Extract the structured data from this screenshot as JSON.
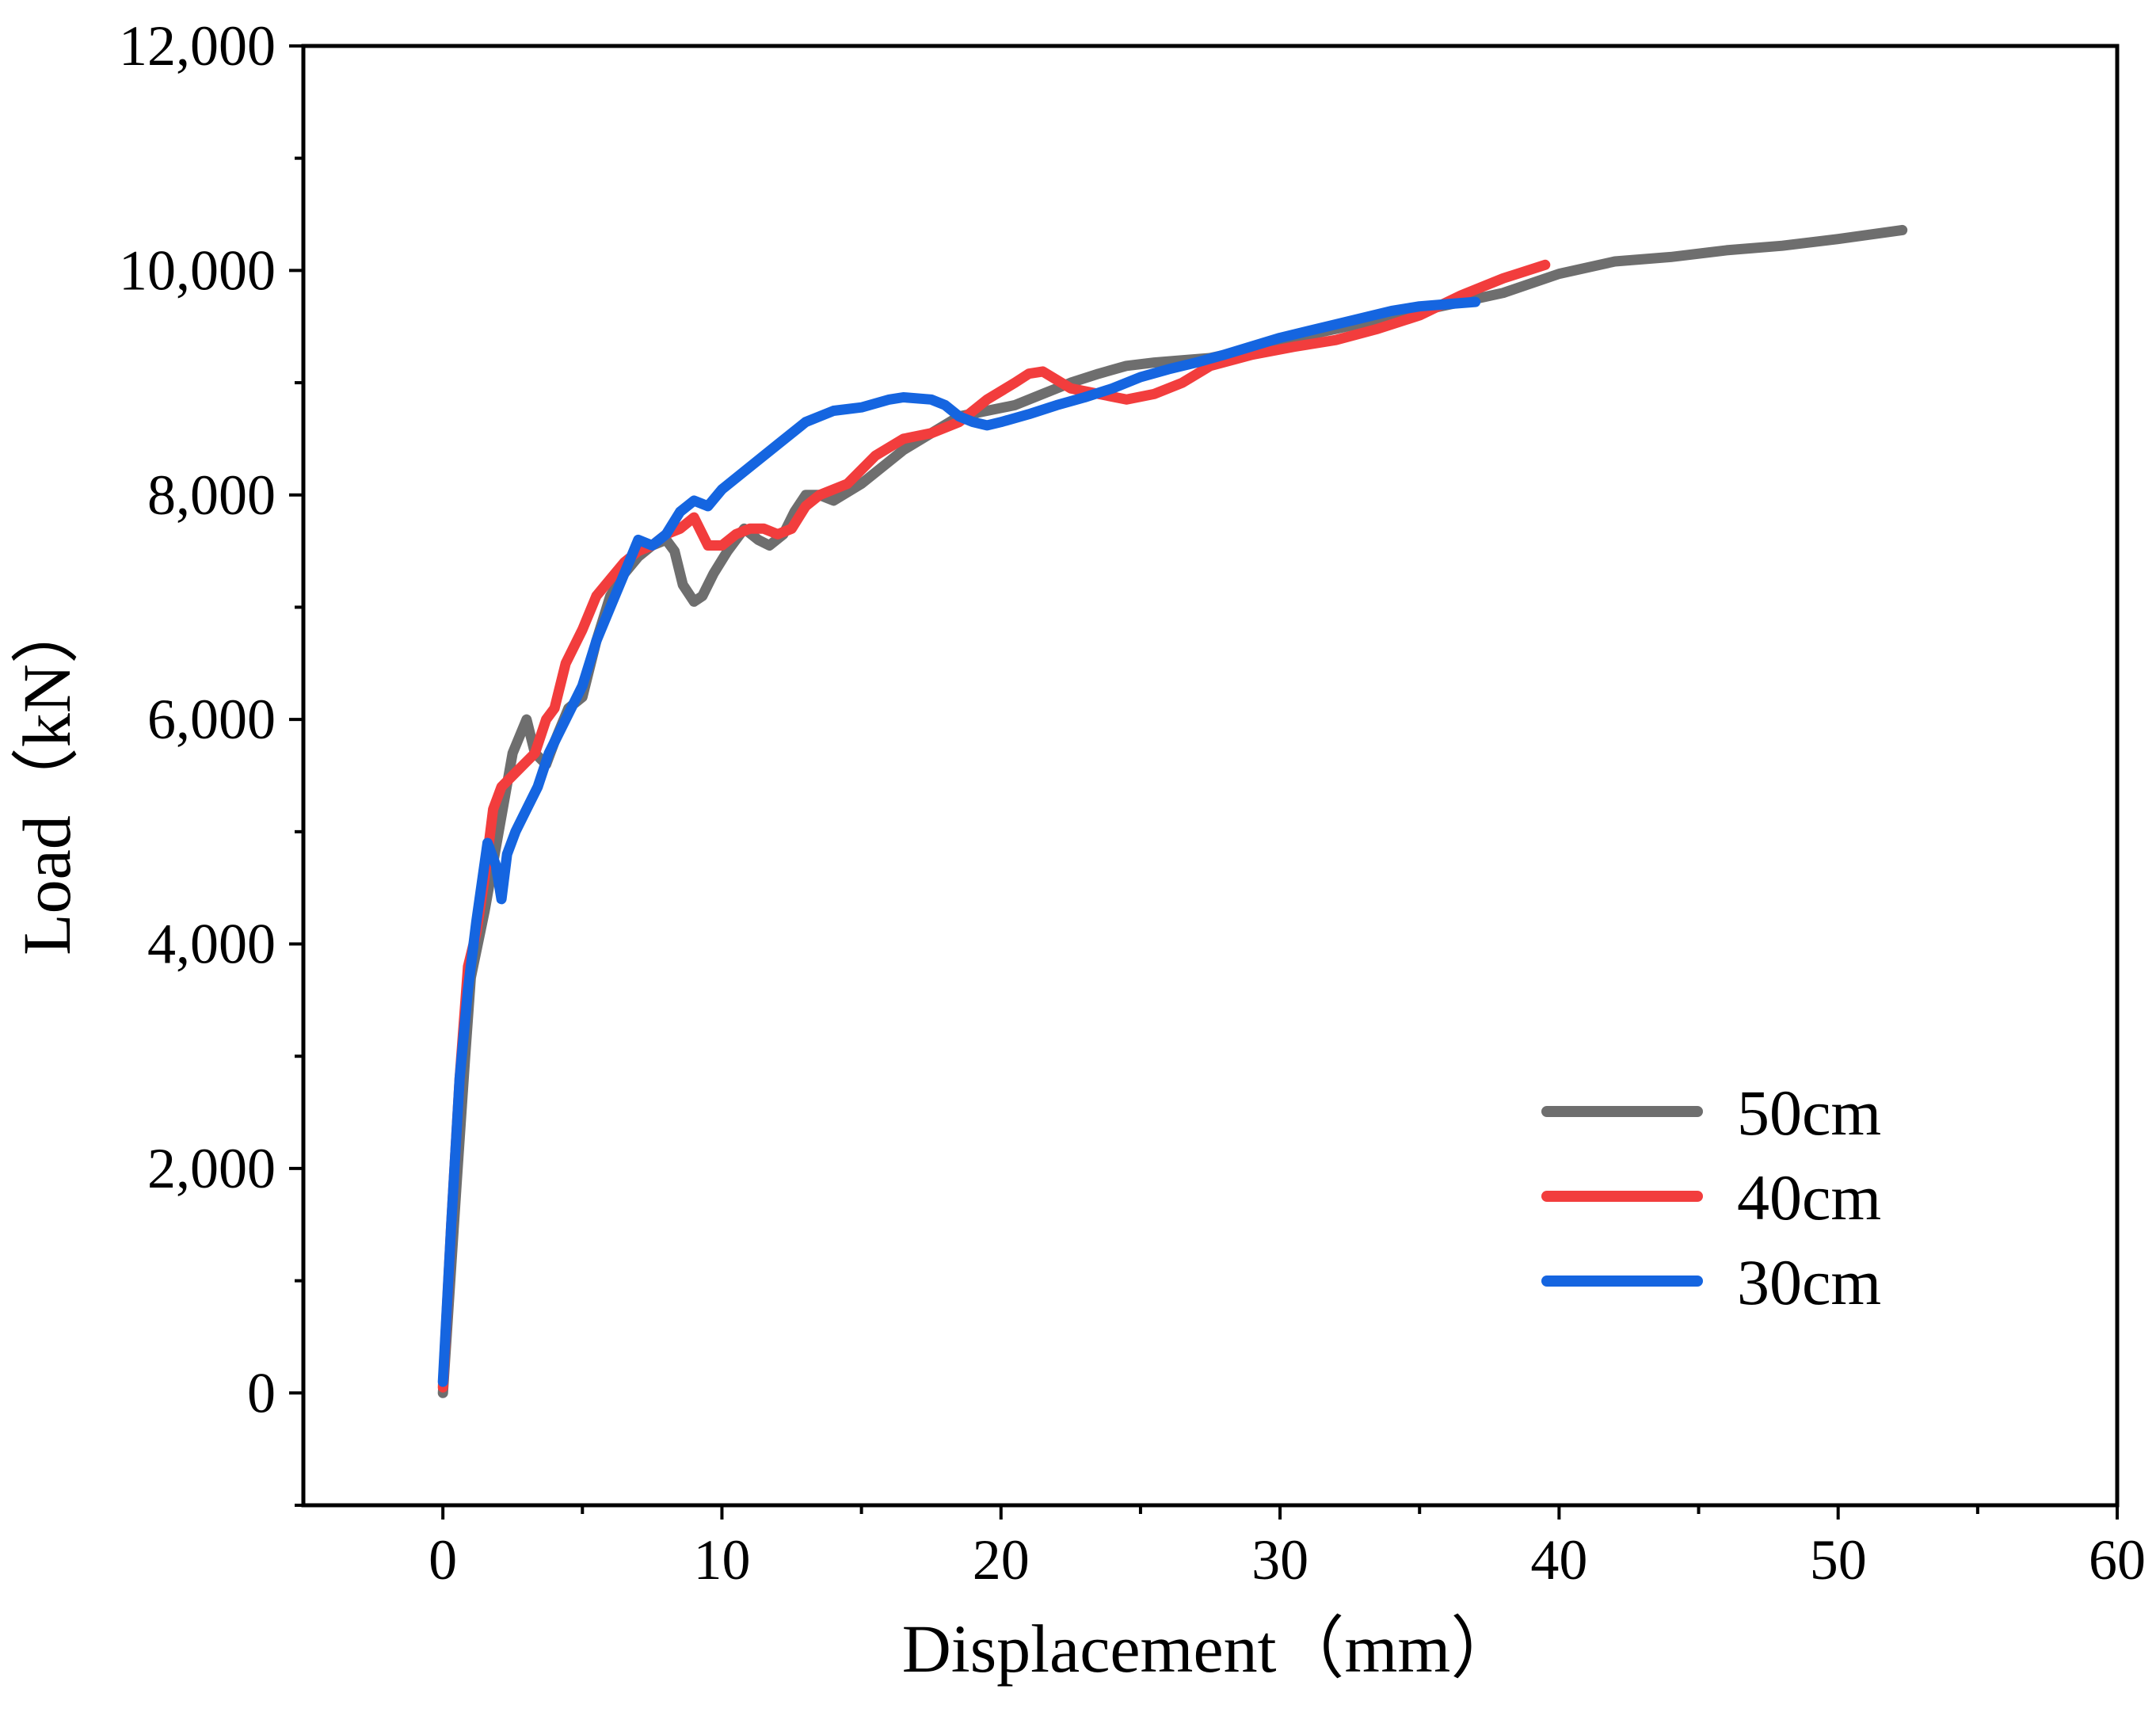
{
  "chart_data": {
    "type": "line",
    "title": "",
    "xlabel": "Displacement（mm）",
    "ylabel": "Load（kN）",
    "xlim": [
      -5,
      60
    ],
    "ylim": [
      -1000,
      12000
    ],
    "x_ticks": [
      0,
      10,
      20,
      30,
      40,
      50,
      60
    ],
    "x_tick_labels": [
      "0",
      "10",
      "20",
      "30",
      "40",
      "50",
      "60"
    ],
    "y_ticks": [
      0,
      2000,
      4000,
      6000,
      8000,
      10000,
      12000
    ],
    "y_tick_labels": [
      "0",
      "2,000",
      "4,000",
      "6,000",
      "8,000",
      "10,000",
      "12,000"
    ],
    "grid": false,
    "legend_position": "lower-right",
    "series": [
      {
        "name": "50cm",
        "color": "#6e6e6e",
        "x": [
          0.0,
          0.5,
          0.8,
          1.0,
          1.5,
          2.0,
          2.5,
          3.0,
          3.3,
          3.7,
          4.0,
          4.5,
          5.0,
          5.5,
          6.0,
          6.5,
          7.0,
          7.5,
          8.0,
          8.3,
          8.6,
          9.0,
          9.3,
          9.7,
          10.2,
          10.8,
          11.3,
          11.7,
          12.2,
          12.6,
          13.0,
          13.5,
          14.0,
          15.0,
          16.0,
          16.5,
          17.5,
          18.5,
          19.5,
          20.5,
          21.5,
          22.5,
          23.5,
          24.5,
          25.5,
          26.5,
          27.5,
          29.0,
          30.5,
          32.0,
          33.5,
          35.0,
          36.5,
          38.0,
          40.0,
          42.0,
          44.0,
          46.0,
          48.0,
          50.0,
          52.3
        ],
        "y": [
          0,
          1900,
          3000,
          3700,
          4300,
          5000,
          5700,
          6000,
          5700,
          5600,
          5800,
          6100,
          6200,
          6700,
          7100,
          7300,
          7450,
          7550,
          7600,
          7500,
          7200,
          7050,
          7100,
          7300,
          7500,
          7700,
          7600,
          7550,
          7650,
          7850,
          8000,
          8000,
          7950,
          8100,
          8300,
          8400,
          8550,
          8700,
          8750,
          8800,
          8900,
          9000,
          9080,
          9150,
          9180,
          9200,
          9220,
          9300,
          9400,
          9480,
          9560,
          9640,
          9720,
          9800,
          9970,
          10080,
          10120,
          10180,
          10220,
          10280,
          10360
        ]
      },
      {
        "name": "40cm",
        "color": "#f23d3d",
        "x": [
          0.0,
          0.3,
          0.6,
          0.9,
          1.2,
          1.5,
          1.8,
          2.1,
          2.5,
          2.9,
          3.3,
          3.7,
          4.0,
          4.4,
          5.0,
          5.5,
          6.0,
          6.5,
          7.0,
          7.5,
          8.0,
          8.5,
          9.0,
          9.5,
          10.0,
          10.5,
          11.0,
          11.5,
          12.0,
          12.5,
          13.0,
          13.5,
          14.5,
          15.5,
          16.5,
          17.5,
          18.5,
          19.5,
          20.5,
          21.0,
          21.5,
          22.5,
          23.5,
          24.5,
          25.5,
          26.5,
          27.5,
          29.0,
          30.5,
          32.0,
          33.5,
          35.0,
          36.5,
          38.0,
          39.5
        ],
        "y": [
          50,
          1500,
          2800,
          3800,
          4100,
          4600,
          5200,
          5400,
          5500,
          5600,
          5700,
          6000,
          6100,
          6500,
          6800,
          7100,
          7250,
          7400,
          7500,
          7550,
          7650,
          7700,
          7800,
          7550,
          7550,
          7650,
          7700,
          7700,
          7650,
          7700,
          7900,
          8000,
          8100,
          8350,
          8500,
          8550,
          8650,
          8850,
          9000,
          9080,
          9100,
          8950,
          8900,
          8850,
          8900,
          9000,
          9150,
          9250,
          9320,
          9380,
          9480,
          9600,
          9780,
          9930,
          10050
        ]
      },
      {
        "name": "30cm",
        "color": "#1565e0",
        "x": [
          0.0,
          0.3,
          0.6,
          0.9,
          1.2,
          1.6,
          1.9,
          2.1,
          2.3,
          2.6,
          3.0,
          3.4,
          3.8,
          4.2,
          4.6,
          5.0,
          5.5,
          6.0,
          6.5,
          7.0,
          7.5,
          8.0,
          8.5,
          9.0,
          9.5,
          10.0,
          11.0,
          12.0,
          13.0,
          14.0,
          15.0,
          16.0,
          16.5,
          17.5,
          18.0,
          18.5,
          19.0,
          19.5,
          20.0,
          21.0,
          22.0,
          23.0,
          24.0,
          25.0,
          26.0,
          27.0,
          28.0,
          30.0,
          32.0,
          34.0,
          35.0,
          36.0,
          37.0
        ],
        "y": [
          100,
          1500,
          2800,
          3600,
          4200,
          4900,
          4700,
          4400,
          4800,
          5000,
          5200,
          5400,
          5700,
          5900,
          6100,
          6300,
          6700,
          7000,
          7300,
          7600,
          7550,
          7650,
          7850,
          7950,
          7900,
          8050,
          8250,
          8450,
          8650,
          8750,
          8780,
          8850,
          8870,
          8850,
          8800,
          8700,
          8650,
          8620,
          8650,
          8720,
          8800,
          8870,
          8950,
          9050,
          9120,
          9180,
          9250,
          9400,
          9520,
          9640,
          9680,
          9700,
          9720
        ]
      }
    ]
  }
}
